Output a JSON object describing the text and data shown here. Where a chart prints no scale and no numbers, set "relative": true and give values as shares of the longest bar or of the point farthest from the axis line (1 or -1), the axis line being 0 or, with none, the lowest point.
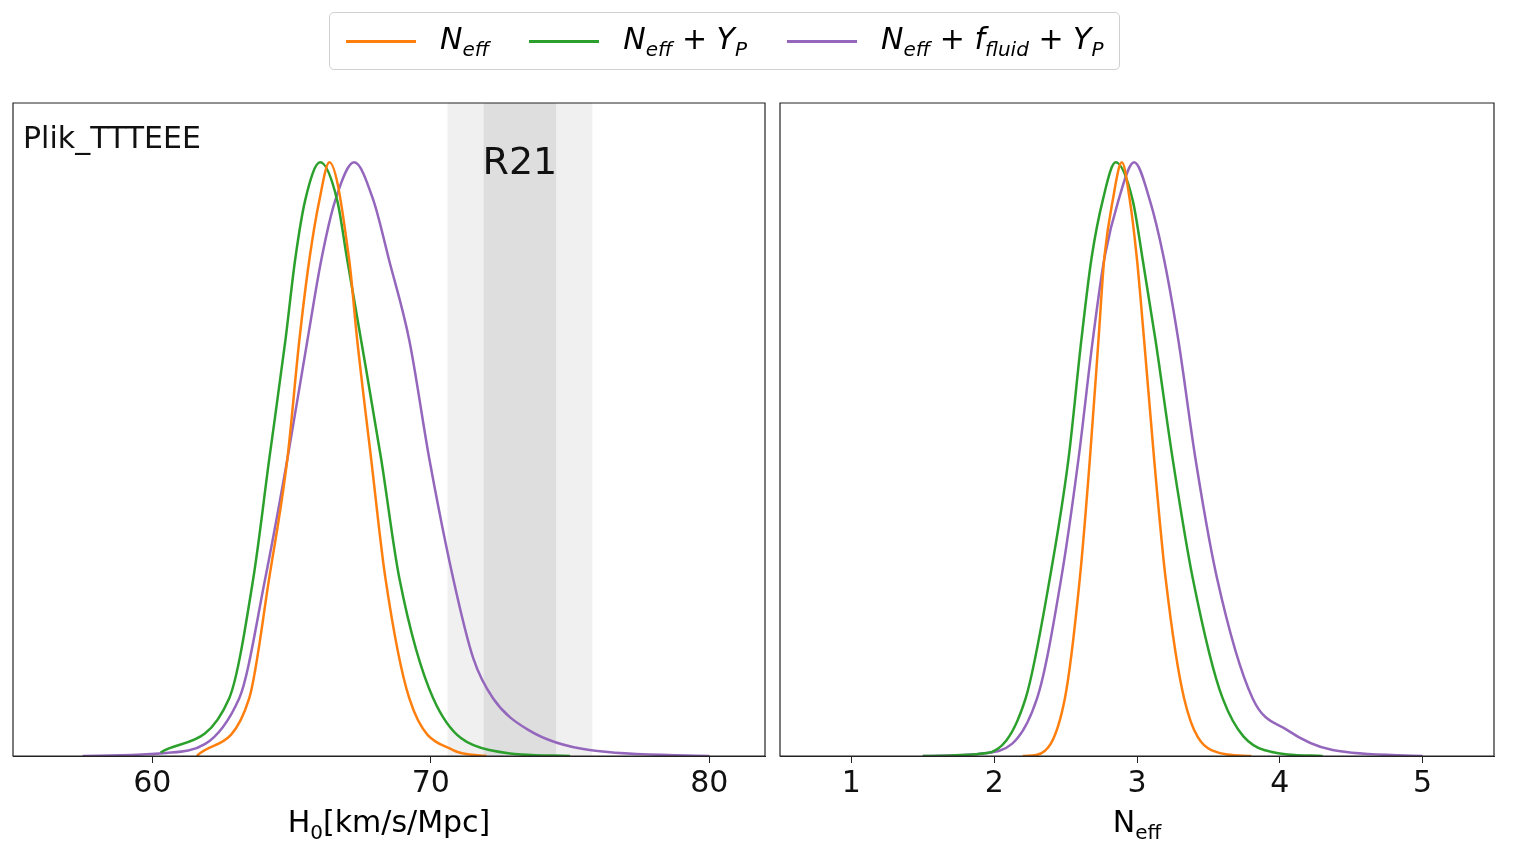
{
  "chart_data": [
    {
      "type": "line",
      "relative": true,
      "xlabel": "H$_{0}$[km/s/Mpc]",
      "xlim": [
        55,
        82
      ],
      "xticks": [
        60,
        70,
        80
      ],
      "tick_labels": "x",
      "legend": "top",
      "annotations": [
        "Plik_TTTEEE"
      ],
      "bands": [
        {
          "axis": "x",
          "from": 70.6,
          "to": 75.8,
          "color": "#f0f0f0"
        },
        {
          "axis": "x",
          "from": 71.9,
          "to": 74.5,
          "color": "#dedede",
          "label": "R21"
        }
      ],
      "series": [
        {
          "name": "N$_{eff}$",
          "color": "#ff7f0e",
          "x": [
            61.6,
            63.48,
            64.2,
            64.85,
            65.28,
            65.64,
            66.0,
            66.36,
            67.07,
            67.36,
            67.86,
            68.37,
            69.23,
            70.8,
            72.0
          ],
          "values": [
            0,
            0.097,
            0.3,
            0.5,
            0.7,
            0.836,
            0.936,
            1,
            0.836,
            0.7,
            0.5,
            0.3,
            0.097,
            0.01,
            0
          ]
        },
        {
          "name": "N$_{eff}$ + Y$_{P}$",
          "color": "#2ca02c",
          "x": [
            60.3,
            62.76,
            63.63,
            64.2,
            64.78,
            65.13,
            65.49,
            66.03,
            66.64,
            67.0,
            67.5,
            68.22,
            68.87,
            70.09,
            72.1,
            75.0
          ],
          "values": [
            0.006,
            0.097,
            0.3,
            0.5,
            0.7,
            0.836,
            0.936,
            1,
            0.936,
            0.836,
            0.7,
            0.5,
            0.3,
            0.097,
            0.01,
            0
          ]
        },
        {
          "name": "N$_{eff}$ + f$_{fluid}$ + Y$_{P}$",
          "color": "#9467bd",
          "x": [
            57.5,
            60.5,
            63.12,
            64.06,
            64.85,
            65.57,
            66.07,
            66.57,
            67.25,
            67.94,
            68.5,
            69.23,
            69.95,
            70.8,
            71.53,
            72.24,
            73.5,
            75.7,
            80.0
          ],
          "values": [
            0,
            0.005,
            0.097,
            0.3,
            0.5,
            0.7,
            0.836,
            0.936,
            1,
            0.936,
            0.836,
            0.7,
            0.5,
            0.3,
            0.164,
            0.097,
            0.044,
            0.01,
            0
          ]
        }
      ]
    },
    {
      "type": "line",
      "relative": true,
      "xlabel": "N$_{eff}$",
      "xlim": [
        0.5,
        5.5
      ],
      "xticks": [
        1,
        2,
        3,
        4,
        5
      ],
      "tick_labels": "x",
      "series": [
        {
          "color": "#ff7f0e",
          "x": [
            2.2,
            2.3,
            2.495,
            2.6,
            2.67,
            2.73,
            2.77,
            2.83,
            2.894,
            2.95,
            3.0,
            3.05,
            3.12,
            3.2,
            3.33,
            3.52,
            3.8
          ],
          "values": [
            0,
            0.002,
            0.097,
            0.3,
            0.5,
            0.7,
            0.836,
            0.936,
            1,
            0.936,
            0.836,
            0.7,
            0.5,
            0.3,
            0.097,
            0.01,
            0
          ]
        },
        {
          "color": "#2ca02c",
          "x": [
            1.5,
            1.95,
            2.22,
            2.39,
            2.52,
            2.61,
            2.68,
            2.76,
            2.85,
            2.97,
            3.04,
            3.13,
            3.25,
            3.39,
            3.6,
            3.89,
            4.3
          ],
          "values": [
            0,
            0.005,
            0.097,
            0.3,
            0.5,
            0.7,
            0.836,
            0.936,
            1,
            0.936,
            0.836,
            0.7,
            0.5,
            0.3,
            0.097,
            0.01,
            0
          ]
        },
        {
          "color": "#9467bd",
          "x": [
            1.5,
            1.95,
            2.3,
            2.47,
            2.59,
            2.69,
            2.77,
            2.87,
            2.98,
            3.09,
            3.19,
            3.29,
            3.41,
            3.56,
            3.81,
            4.05,
            4.37,
            5.0
          ],
          "values": [
            0,
            0.005,
            0.097,
            0.3,
            0.5,
            0.7,
            0.836,
            0.936,
            1,
            0.936,
            0.836,
            0.7,
            0.5,
            0.3,
            0.097,
            0.044,
            0.01,
            0
          ]
        }
      ]
    }
  ]
}
